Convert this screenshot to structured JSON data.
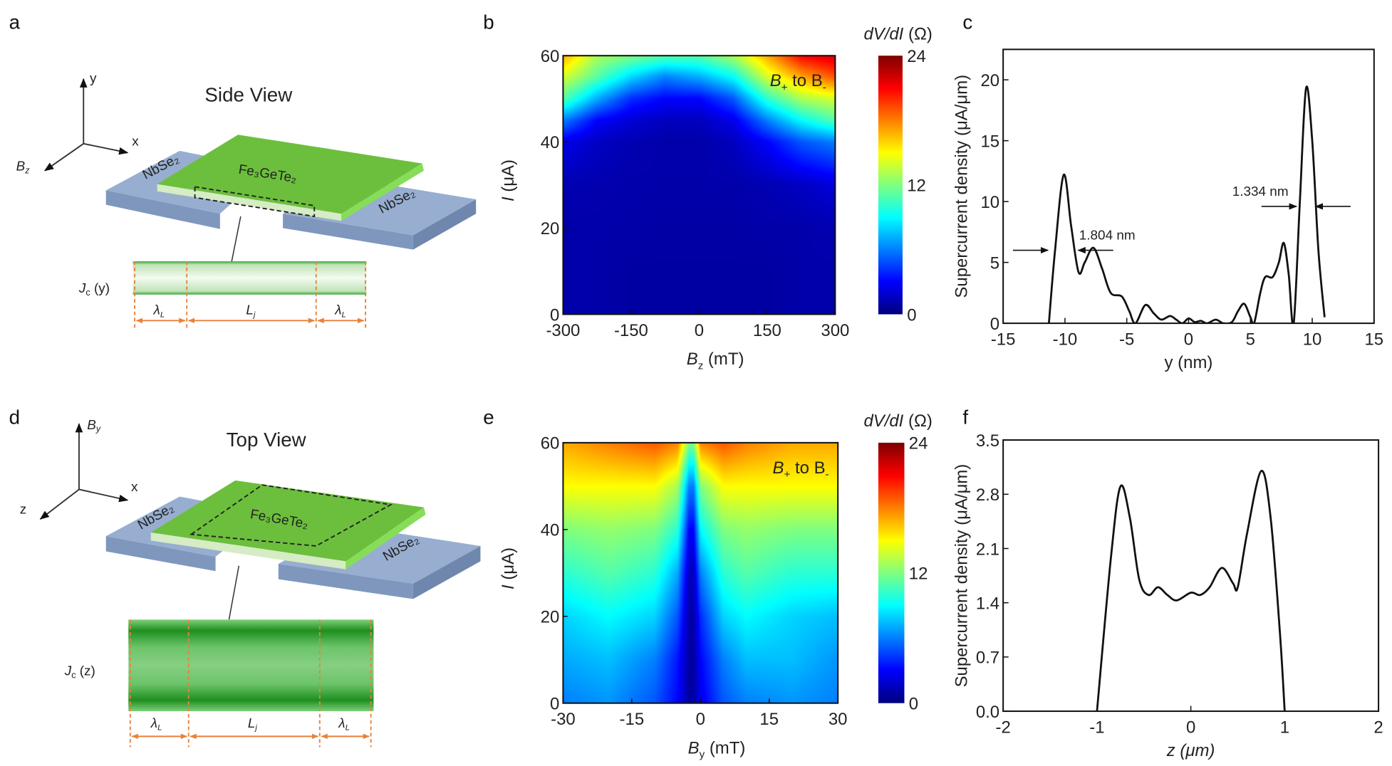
{
  "panels": {
    "a": {
      "letter": "a",
      "title": "Side View",
      "axis_y": "y",
      "axis_x": "x",
      "axis_field_main": "B",
      "axis_field_sub": "z",
      "electrode_left": "NbSe₂",
      "electrode_right": "NbSe₂",
      "flake": "Fe₃GeTe₂",
      "profile_main": "J",
      "profile_sub": "c",
      "profile_arg": " (y)",
      "lambda_main": "λ",
      "lambda_sub": "L",
      "lj_main": "L",
      "lj_sub": "j"
    },
    "b": {
      "letter": "b"
    },
    "c": {
      "letter": "c"
    },
    "d": {
      "letter": "d",
      "title": "Top View",
      "axis_field_main": "B",
      "axis_field_sub": "y",
      "axis_x": "x",
      "axis_z": "z",
      "electrode_left": "NbSe₂",
      "electrode_right": "NbSe₂",
      "flake": "Fe₃GeTe₂",
      "profile_main": "J",
      "profile_sub": "c",
      "profile_arg": " (z)",
      "lambda_main": "λ",
      "lambda_sub": "L",
      "lj_main": "L",
      "lj_sub": "j"
    },
    "e": {
      "letter": "e"
    },
    "f": {
      "letter": "f"
    }
  },
  "colors": {
    "flake": "#6cbf3c",
    "electrode": "#8fa6c9",
    "dim": "#e8823a",
    "curve": "#111111"
  },
  "chart_data": [
    {
      "panel": "b",
      "type": "heatmap",
      "xlabel_main": "B",
      "xlabel_sub": "z",
      "xlabel_unit": " (mT)",
      "ylabel_main": "I",
      "ylabel_unit": " (μA)",
      "xlim": [
        -300,
        300
      ],
      "ylim": [
        0,
        60
      ],
      "xticks": [
        "-300",
        "-150",
        "0",
        "150",
        "300"
      ],
      "yticks": [
        "0",
        "20",
        "40",
        "60"
      ],
      "annotation_main": "B",
      "annotation_sub1": "+",
      "annotation_mid": " to B",
      "annotation_sub2": "-",
      "colorbar": {
        "label_main": "dV/dI",
        "label_unit": " (Ω)",
        "range": [
          0,
          24
        ],
        "ticks": [
          "0",
          "12",
          "24"
        ],
        "colormap": "jet"
      },
      "x_values": [
        -300,
        -225,
        -150,
        -75,
        0,
        75,
        150,
        225,
        300
      ],
      "y_values": [
        0,
        10,
        20,
        30,
        40,
        45,
        50,
        55,
        60
      ],
      "z": [
        [
          1,
          1,
          0.8,
          0.8,
          0.8,
          0.8,
          0.8,
          1,
          1
        ],
        [
          1,
          1,
          0.8,
          0.8,
          0.8,
          0.8,
          0.8,
          1,
          1
        ],
        [
          1,
          1,
          1,
          0.9,
          0.9,
          0.9,
          1,
          1,
          1.2
        ],
        [
          1.2,
          1.1,
          1,
          1,
          1,
          1,
          1.2,
          1.6,
          2.2
        ],
        [
          2.5,
          1.6,
          1.2,
          1,
          1,
          1.5,
          3,
          5,
          6
        ],
        [
          6,
          3,
          2,
          1.5,
          1.5,
          2.5,
          6,
          9,
          11
        ],
        [
          11,
          7,
          4,
          3,
          3,
          5,
          10,
          13,
          14
        ],
        [
          14,
          11,
          8,
          6,
          7,
          9,
          14,
          17,
          19
        ],
        [
          17,
          13,
          12,
          11,
          11,
          13,
          17,
          21,
          22
        ]
      ]
    },
    {
      "panel": "c",
      "type": "line",
      "xlabel": "y (nm)",
      "ylabel": "Supercurrent density (μA/μm)",
      "xlim": [
        -15,
        15
      ],
      "ylim": [
        0,
        22.5
      ],
      "xticks": [
        "-15",
        "-10",
        "-5",
        "0",
        "5",
        "10",
        "15"
      ],
      "yticks": [
        "0",
        "5",
        "10",
        "15",
        "20"
      ],
      "annotations": [
        {
          "text": "1.804 nm",
          "level": 6,
          "left_edge": -11.3,
          "right_edge": -9.0
        },
        {
          "text": "1.334 nm",
          "level": 9.6,
          "left_edge": 8.8,
          "right_edge": 10.2
        }
      ],
      "x": [
        -11.3,
        -10.8,
        -10.1,
        -9.5,
        -8.9,
        -8.4,
        -7.7,
        -7,
        -6.3,
        -5.4,
        -4.8,
        -4.3,
        -3.5,
        -2.8,
        -2.2,
        -1.5,
        -1,
        -0.5,
        0,
        0.5,
        1,
        1.5,
        2.2,
        2.8,
        3.5,
        4,
        4.5,
        5,
        5.3,
        5.8,
        6.2,
        6.8,
        7.3,
        7.7,
        8.1,
        8.5,
        9,
        9.5,
        10,
        10.5,
        11
      ],
      "y": [
        0,
        6,
        12.2,
        8,
        4.2,
        5,
        6.2,
        4.5,
        2.5,
        2.2,
        1,
        0,
        1.5,
        0.8,
        0.3,
        0.6,
        0.3,
        0,
        0.4,
        0.1,
        0.2,
        0,
        0.3,
        0,
        0.1,
        1,
        1.6,
        0.5,
        0,
        2.5,
        3.8,
        3.8,
        5,
        6.6,
        4,
        0,
        10,
        19.3,
        15,
        6,
        0.5
      ]
    },
    {
      "panel": "e",
      "type": "heatmap",
      "xlabel_main": "B",
      "xlabel_sub": "y",
      "xlabel_unit": " (mT)",
      "ylabel_main": "I",
      "ylabel_unit": " (μA)",
      "xlim": [
        -30,
        30
      ],
      "ylim": [
        0,
        60
      ],
      "xticks": [
        "-30",
        "-15",
        "0",
        "15",
        "30"
      ],
      "yticks": [
        "0",
        "20",
        "40",
        "60"
      ],
      "annotation_main": "B",
      "annotation_sub1": "+",
      "annotation_mid": " to B",
      "annotation_sub2": "-",
      "colorbar": {
        "label_main": "dV/dI",
        "label_unit": " (Ω)",
        "range": [
          0,
          24
        ],
        "ticks": [
          "0",
          "12",
          "24"
        ],
        "colormap": "jet"
      },
      "x_values": [
        -30,
        -20,
        -10,
        -5,
        -2.5,
        -1.5,
        0,
        5,
        10,
        20,
        30
      ],
      "y_values": [
        0,
        10,
        20,
        30,
        40,
        50,
        60
      ],
      "z": [
        [
          6,
          6.5,
          5,
          3,
          0.8,
          0.8,
          2.5,
          5,
          6,
          6.5,
          6
        ],
        [
          7,
          7.5,
          6,
          3.5,
          0.8,
          0.8,
          3,
          6,
          7.5,
          7.5,
          6.5
        ],
        [
          8,
          9,
          8,
          5,
          1,
          1,
          4,
          8,
          9,
          8,
          7.5
        ],
        [
          10,
          11,
          10,
          7,
          1.5,
          1.5,
          6,
          10,
          11,
          10,
          10
        ],
        [
          12,
          12.5,
          12,
          10,
          3,
          3,
          9,
          12,
          12.5,
          12,
          12
        ],
        [
          15,
          15,
          15,
          13,
          6,
          6,
          12,
          15,
          15,
          15,
          15
        ],
        [
          17,
          18,
          19,
          18,
          12,
          12,
          18,
          19,
          18,
          17,
          17
        ]
      ]
    },
    {
      "panel": "f",
      "type": "line",
      "xlabel": "z (μm)",
      "ylabel": "Supercurrent density (μA/μm)",
      "xlim": [
        -2,
        2
      ],
      "ylim": [
        0,
        3.5
      ],
      "xticks": [
        "-2",
        "-1",
        "0",
        "1",
        "2"
      ],
      "yticks": [
        "0.0",
        "0.7",
        "1.4",
        "2.1",
        "2.8",
        "3.5"
      ],
      "x": [
        -1,
        -0.85,
        -0.75,
        -0.65,
        -0.55,
        -0.45,
        -0.35,
        -0.25,
        -0.15,
        0,
        0.1,
        0.2,
        0.33,
        0.45,
        0.5,
        0.6,
        0.75,
        0.85,
        0.95,
        1
      ],
      "y": [
        0,
        2,
        2.9,
        2.5,
        1.7,
        1.5,
        1.6,
        1.5,
        1.43,
        1.53,
        1.5,
        1.6,
        1.85,
        1.65,
        1.6,
        2.3,
        3.1,
        2.5,
        1,
        0
      ]
    }
  ]
}
